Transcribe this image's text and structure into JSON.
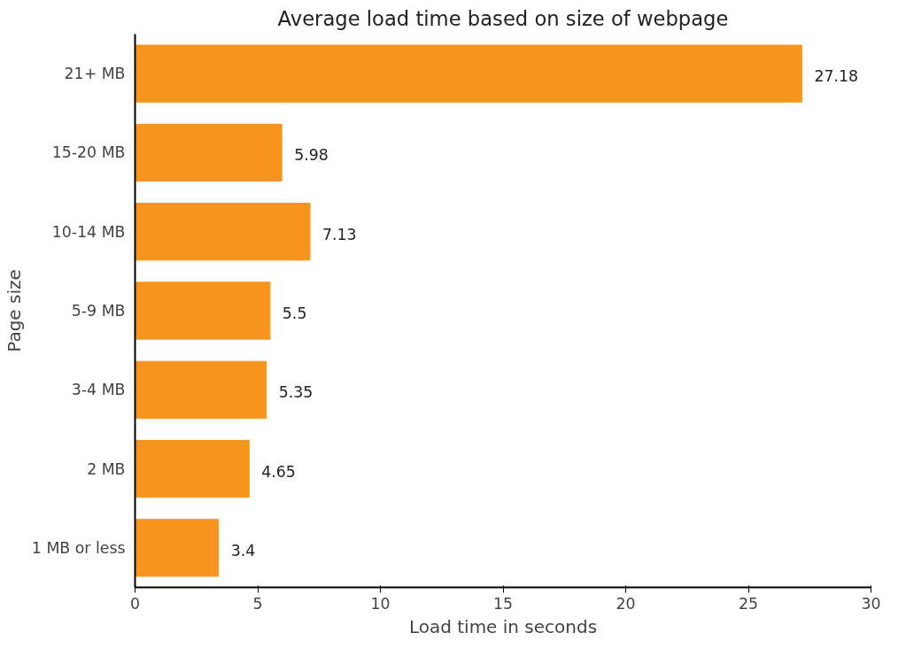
{
  "chart_data": {
    "type": "bar",
    "orientation": "horizontal",
    "title": "Average load time based on size of webpage",
    "xlabel": "Load time in seconds",
    "ylabel": "Page size",
    "categories": [
      "21+ MB",
      "15-20 MB",
      "10-14 MB",
      "5-9 MB",
      "3-4 MB",
      "2 MB",
      "1 MB or less"
    ],
    "values": [
      27.18,
      5.98,
      7.13,
      5.5,
      5.35,
      4.65,
      3.4
    ],
    "color": "#f7941d",
    "data_labels": true,
    "grid": false,
    "xlim": [
      0,
      30
    ],
    "xticks": [
      0,
      5,
      10,
      15,
      20,
      25,
      30
    ]
  }
}
